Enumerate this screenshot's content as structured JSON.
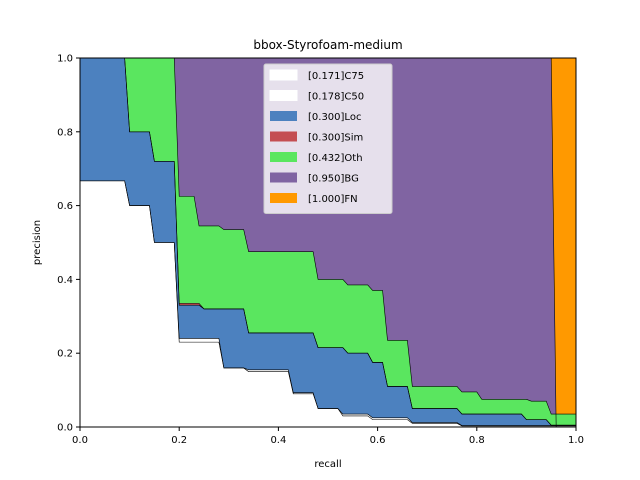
{
  "chart_data": {
    "type": "area",
    "title": "bbox-Styrofoam-medium",
    "xlabel": "recall",
    "ylabel": "precision",
    "xlim": [
      0,
      1
    ],
    "ylim": [
      0,
      1
    ],
    "x_ticks": [
      "0.0",
      "0.2",
      "0.4",
      "0.6",
      "0.8",
      "1.0"
    ],
    "y_ticks": [
      "0.0",
      "0.2",
      "0.4",
      "0.6",
      "0.8",
      "1.0"
    ],
    "grid": false,
    "legend_position": "top-center",
    "series": [
      {
        "name": "[0.171]C75",
        "color": "#ffffff",
        "points": [
          [
            0,
            0.667
          ],
          [
            0.09,
            0.667
          ],
          [
            0.1,
            0.6
          ],
          [
            0.14,
            0.6
          ],
          [
            0.15,
            0.5
          ],
          [
            0.19,
            0.5
          ],
          [
            0.2,
            0.23
          ],
          [
            0.28,
            0.23
          ],
          [
            0.29,
            0.16
          ],
          [
            0.33,
            0.16
          ],
          [
            0.34,
            0.15
          ],
          [
            0.42,
            0.15
          ],
          [
            0.43,
            0.09
          ],
          [
            0.47,
            0.09
          ],
          [
            0.48,
            0.05
          ],
          [
            0.52,
            0.05
          ],
          [
            0.53,
            0.03
          ],
          [
            0.58,
            0.03
          ],
          [
            0.59,
            0.02
          ],
          [
            0.66,
            0.02
          ],
          [
            0.67,
            0.01
          ],
          [
            0.76,
            0.01
          ],
          [
            0.77,
            0.003
          ],
          [
            1,
            0.003
          ]
        ]
      },
      {
        "name": "[0.178]C50",
        "color": "#ffffff",
        "points": [
          [
            0,
            0.667
          ],
          [
            0.09,
            0.667
          ],
          [
            0.1,
            0.6
          ],
          [
            0.14,
            0.6
          ],
          [
            0.15,
            0.5
          ],
          [
            0.19,
            0.5
          ],
          [
            0.2,
            0.24
          ],
          [
            0.28,
            0.24
          ],
          [
            0.29,
            0.16
          ],
          [
            0.33,
            0.16
          ],
          [
            0.34,
            0.155
          ],
          [
            0.42,
            0.155
          ],
          [
            0.43,
            0.093
          ],
          [
            0.47,
            0.093
          ],
          [
            0.48,
            0.05
          ],
          [
            0.52,
            0.05
          ],
          [
            0.53,
            0.035
          ],
          [
            0.58,
            0.035
          ],
          [
            0.59,
            0.025
          ],
          [
            0.66,
            0.025
          ],
          [
            0.67,
            0.012
          ],
          [
            0.76,
            0.012
          ],
          [
            0.77,
            0.004
          ],
          [
            1,
            0.004
          ]
        ]
      },
      {
        "name": "[0.300]Loc",
        "color": "#4c81bf",
        "points": [
          [
            0,
            1
          ],
          [
            0.09,
            1
          ],
          [
            0.1,
            0.8
          ],
          [
            0.14,
            0.8
          ],
          [
            0.15,
            0.72
          ],
          [
            0.19,
            0.72
          ],
          [
            0.2,
            0.33
          ],
          [
            0.24,
            0.33
          ],
          [
            0.25,
            0.32
          ],
          [
            0.33,
            0.32
          ],
          [
            0.34,
            0.255
          ],
          [
            0.47,
            0.255
          ],
          [
            0.48,
            0.215
          ],
          [
            0.53,
            0.215
          ],
          [
            0.54,
            0.2
          ],
          [
            0.58,
            0.2
          ],
          [
            0.59,
            0.175
          ],
          [
            0.61,
            0.175
          ],
          [
            0.62,
            0.11
          ],
          [
            0.66,
            0.11
          ],
          [
            0.67,
            0.05
          ],
          [
            0.76,
            0.05
          ],
          [
            0.77,
            0.035
          ],
          [
            0.89,
            0.035
          ],
          [
            0.9,
            0.02
          ],
          [
            0.94,
            0.02
          ],
          [
            0.95,
            0.005
          ],
          [
            1,
            0.005
          ]
        ]
      },
      {
        "name": "[0.300]Sim",
        "color": "#c44e52",
        "points": [
          [
            0,
            1
          ],
          [
            0.09,
            1
          ],
          [
            0.1,
            0.8
          ],
          [
            0.14,
            0.8
          ],
          [
            0.15,
            0.72
          ],
          [
            0.19,
            0.72
          ],
          [
            0.2,
            0.335
          ],
          [
            0.24,
            0.335
          ],
          [
            0.25,
            0.32
          ],
          [
            0.33,
            0.32
          ],
          [
            0.34,
            0.255
          ],
          [
            0.47,
            0.255
          ],
          [
            0.48,
            0.215
          ],
          [
            0.53,
            0.215
          ],
          [
            0.54,
            0.2
          ],
          [
            0.58,
            0.2
          ],
          [
            0.59,
            0.175
          ],
          [
            0.61,
            0.175
          ],
          [
            0.62,
            0.11
          ],
          [
            0.66,
            0.11
          ],
          [
            0.67,
            0.05
          ],
          [
            0.76,
            0.05
          ],
          [
            0.77,
            0.035
          ],
          [
            0.89,
            0.035
          ],
          [
            0.9,
            0.02
          ],
          [
            0.94,
            0.02
          ],
          [
            0.95,
            0.005
          ],
          [
            1,
            0.005
          ]
        ]
      },
      {
        "name": "[0.432]Oth",
        "color": "#5ae65f",
        "points": [
          [
            0,
            1
          ],
          [
            0.19,
            1
          ],
          [
            0.2,
            0.625
          ],
          [
            0.23,
            0.625
          ],
          [
            0.24,
            0.545
          ],
          [
            0.28,
            0.545
          ],
          [
            0.29,
            0.535
          ],
          [
            0.33,
            0.535
          ],
          [
            0.34,
            0.475
          ],
          [
            0.47,
            0.475
          ],
          [
            0.48,
            0.4
          ],
          [
            0.53,
            0.4
          ],
          [
            0.54,
            0.385
          ],
          [
            0.58,
            0.385
          ],
          [
            0.59,
            0.37
          ],
          [
            0.61,
            0.37
          ],
          [
            0.62,
            0.235
          ],
          [
            0.66,
            0.235
          ],
          [
            0.67,
            0.11
          ],
          [
            0.76,
            0.11
          ],
          [
            0.77,
            0.095
          ],
          [
            0.8,
            0.095
          ],
          [
            0.81,
            0.075
          ],
          [
            0.9,
            0.075
          ],
          [
            0.91,
            0.07
          ],
          [
            0.94,
            0.07
          ],
          [
            0.95,
            0.035
          ],
          [
            1,
            0.035
          ]
        ]
      },
      {
        "name": "[0.950]BG",
        "color": "#8064a2",
        "points": [
          [
            0,
            1
          ],
          [
            0.95,
            1
          ],
          [
            0.96,
            0
          ],
          [
            1,
            0
          ]
        ]
      },
      {
        "name": "[1.000]FN",
        "color": "#ff9900",
        "points": [
          [
            0,
            1
          ],
          [
            1,
            1
          ]
        ]
      }
    ]
  }
}
